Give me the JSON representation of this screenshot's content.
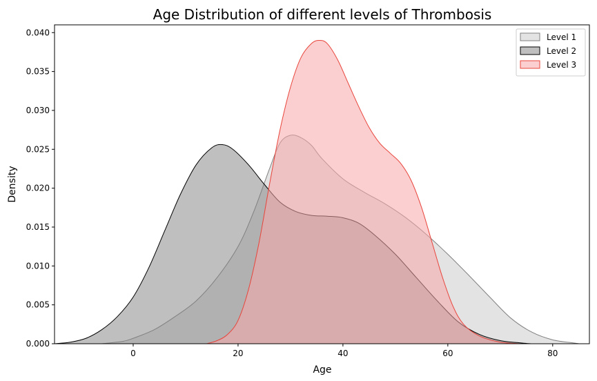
{
  "chart_data": {
    "type": "area",
    "title": "Age Distribution of different levels of Thrombosis",
    "xlabel": "Age",
    "ylabel": "Density",
    "xlim": [
      -15,
      87
    ],
    "ylim": [
      0,
      0.041
    ],
    "xticks": [
      0,
      20,
      40,
      60,
      80
    ],
    "yticks": [
      0.0,
      0.005,
      0.01,
      0.015,
      0.02,
      0.025,
      0.03,
      0.035,
      0.04
    ],
    "ytick_labels": [
      "0.000",
      "0.005",
      "0.010",
      "0.015",
      "0.020",
      "0.025",
      "0.030",
      "0.035",
      "0.040"
    ],
    "grid": false,
    "legend_position": "top-right",
    "series": [
      {
        "name": "Level 1",
        "fill": "#a9a9a9",
        "fill_opacity": 0.33,
        "stroke": "#808080",
        "points": [
          [
            -6,
            0.0
          ],
          [
            -2,
            0.0003
          ],
          [
            0,
            0.0007
          ],
          [
            4,
            0.0018
          ],
          [
            8,
            0.0035
          ],
          [
            12,
            0.0055
          ],
          [
            16,
            0.0085
          ],
          [
            20,
            0.0125
          ],
          [
            23,
            0.017
          ],
          [
            26,
            0.0225
          ],
          [
            28,
            0.0258
          ],
          [
            30,
            0.0268
          ],
          [
            32,
            0.0265
          ],
          [
            34,
            0.0255
          ],
          [
            36,
            0.0238
          ],
          [
            40,
            0.0212
          ],
          [
            44,
            0.0195
          ],
          [
            48,
            0.018
          ],
          [
            52,
            0.0162
          ],
          [
            56,
            0.014
          ],
          [
            60,
            0.0115
          ],
          [
            64,
            0.0088
          ],
          [
            68,
            0.006
          ],
          [
            72,
            0.0033
          ],
          [
            76,
            0.0015
          ],
          [
            80,
            0.0005
          ],
          [
            84,
            0.0001
          ],
          [
            85,
            0.0
          ]
        ]
      },
      {
        "name": "Level 2",
        "fill": "#808080",
        "fill_opacity": 0.5,
        "stroke": "#000000",
        "points": [
          [
            -15,
            0.0
          ],
          [
            -12,
            0.0002
          ],
          [
            -9,
            0.0007
          ],
          [
            -6,
            0.0018
          ],
          [
            -3,
            0.0035
          ],
          [
            0,
            0.006
          ],
          [
            3,
            0.0098
          ],
          [
            6,
            0.0145
          ],
          [
            9,
            0.0192
          ],
          [
            12,
            0.023
          ],
          [
            15,
            0.0252
          ],
          [
            17,
            0.0256
          ],
          [
            19,
            0.025
          ],
          [
            22,
            0.023
          ],
          [
            25,
            0.0205
          ],
          [
            28,
            0.0182
          ],
          [
            31,
            0.017
          ],
          [
            34,
            0.0165
          ],
          [
            37,
            0.0164
          ],
          [
            40,
            0.0162
          ],
          [
            43,
            0.0155
          ],
          [
            46,
            0.014
          ],
          [
            50,
            0.0115
          ],
          [
            54,
            0.0085
          ],
          [
            58,
            0.0055
          ],
          [
            62,
            0.0028
          ],
          [
            66,
            0.0012
          ],
          [
            70,
            0.0004
          ],
          [
            74,
            0.0001
          ],
          [
            76,
            0.0
          ]
        ]
      },
      {
        "name": "Level 3",
        "fill": "#f7a8a8",
        "fill_opacity": 0.55,
        "stroke": "#e8453c",
        "points": [
          [
            14,
            0.0
          ],
          [
            16,
            0.0004
          ],
          [
            18,
            0.0012
          ],
          [
            20,
            0.003
          ],
          [
            22,
            0.007
          ],
          [
            24,
            0.013
          ],
          [
            26,
            0.0205
          ],
          [
            28,
            0.0275
          ],
          [
            30,
            0.033
          ],
          [
            32,
            0.0368
          ],
          [
            34,
            0.0386
          ],
          [
            35.5,
            0.039
          ],
          [
            37,
            0.0386
          ],
          [
            39,
            0.0365
          ],
          [
            41,
            0.0335
          ],
          [
            43,
            0.0305
          ],
          [
            45,
            0.0278
          ],
          [
            47,
            0.0258
          ],
          [
            49,
            0.0245
          ],
          [
            51,
            0.0232
          ],
          [
            53,
            0.021
          ],
          [
            55,
            0.0175
          ],
          [
            57,
            0.013
          ],
          [
            59,
            0.0085
          ],
          [
            61,
            0.0048
          ],
          [
            63,
            0.0025
          ],
          [
            66,
            0.001
          ],
          [
            70,
            0.0002
          ],
          [
            74,
            0.0
          ]
        ]
      }
    ]
  }
}
